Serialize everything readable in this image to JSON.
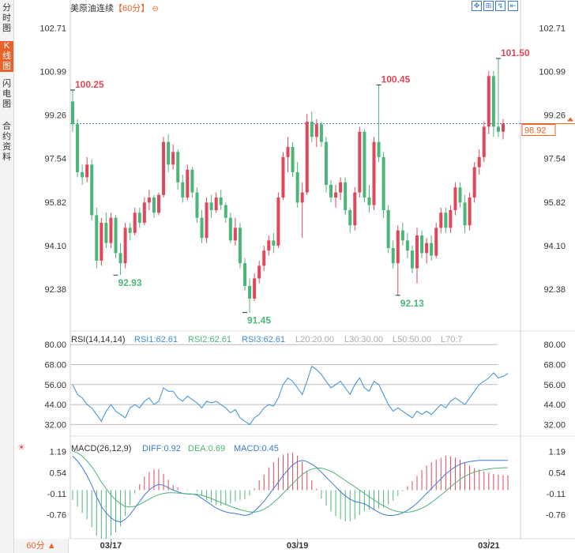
{
  "sidebar": {
    "tabs": [
      {
        "label": "分时图",
        "active": false
      },
      {
        "label": "K线图",
        "active": true
      },
      {
        "label": "闪电图",
        "active": false
      },
      {
        "label": "合约资料",
        "active": false
      }
    ]
  },
  "header": {
    "title": "美原油连续",
    "period": "【60分】",
    "period_icon": "minus-circle-icon",
    "toolbar": [
      "expand-icon",
      "crosshair-icon",
      "indicator-icon",
      "exit-icon"
    ]
  },
  "footer": {
    "period_select": "60分 ▲"
  },
  "current_price": "98.92",
  "colors": {
    "up": "#e0475a",
    "down": "#4cb578",
    "axis": "#333333",
    "grid": "#e6e6e6",
    "dash": "#3a7bd5",
    "rsi": "#3a8fd5",
    "diff": "#3a7bd5",
    "dea": "#4cb578",
    "orange": "#e8622a"
  },
  "chart_data": [
    {
      "type": "candlestick",
      "title": "美原油连续 60分",
      "yticks": [
        "102.71",
        "100.99",
        "99.26",
        "97.54",
        "95.82",
        "94.10",
        "92.38"
      ],
      "ylim": [
        90.75,
        103.25
      ],
      "xticks": [
        {
          "label": "03/17",
          "index": 8
        },
        {
          "label": "03/19",
          "index": 47
        },
        {
          "label": "03/21",
          "index": 87
        }
      ],
      "annotations": [
        {
          "text": "100.25",
          "index": 0,
          "value": 100.25,
          "kind": "high"
        },
        {
          "text": "92.93",
          "index": 9,
          "value": 92.93,
          "kind": "low"
        },
        {
          "text": "91.45",
          "index": 36,
          "value": 91.45,
          "kind": "low"
        },
        {
          "text": "100.45",
          "index": 64,
          "value": 100.45,
          "kind": "high"
        },
        {
          "text": "92.13",
          "index": 68,
          "value": 92.13,
          "kind": "low"
        },
        {
          "text": "101.50",
          "index": 89,
          "value": 101.5,
          "kind": "high"
        }
      ],
      "reference_line": 98.92,
      "ohlc": [
        [
          99.8,
          100.25,
          98.6,
          98.9
        ],
        [
          98.9,
          99.1,
          96.8,
          97.0
        ],
        [
          97.0,
          97.3,
          96.5,
          96.8
        ],
        [
          96.8,
          97.6,
          96.6,
          97.3
        ],
        [
          97.3,
          97.5,
          95.1,
          95.3
        ],
        [
          95.3,
          95.6,
          93.2,
          93.5
        ],
        [
          93.5,
          95.2,
          93.3,
          95.0
        ],
        [
          95.0,
          95.4,
          94.0,
          94.2
        ],
        [
          94.2,
          95.4,
          94.0,
          95.2
        ],
        [
          95.2,
          95.3,
          93.6,
          93.8
        ],
        [
          93.8,
          94.2,
          92.93,
          93.4
        ],
        [
          93.4,
          95.0,
          93.2,
          94.8
        ],
        [
          94.8,
          95.0,
          94.3,
          94.6
        ],
        [
          94.6,
          95.6,
          94.5,
          95.4
        ],
        [
          95.4,
          95.6,
          94.8,
          95.0
        ],
        [
          95.0,
          96.0,
          94.9,
          95.8
        ],
        [
          95.8,
          96.3,
          95.5,
          96.0
        ],
        [
          96.0,
          96.1,
          95.2,
          95.4
        ],
        [
          95.4,
          96.2,
          95.3,
          96.1
        ],
        [
          96.1,
          98.4,
          96.0,
          98.2
        ],
        [
          98.2,
          98.5,
          97.0,
          97.3
        ],
        [
          97.3,
          98.1,
          97.1,
          97.8
        ],
        [
          97.8,
          97.9,
          96.3,
          96.6
        ],
        [
          96.6,
          96.9,
          95.8,
          96.0
        ],
        [
          96.0,
          97.3,
          95.9,
          97.1
        ],
        [
          97.1,
          97.2,
          96.0,
          96.2
        ],
        [
          96.2,
          96.4,
          95.0,
          95.2
        ],
        [
          95.2,
          95.5,
          94.2,
          94.4
        ],
        [
          94.4,
          96.0,
          94.2,
          95.8
        ],
        [
          95.8,
          96.1,
          95.2,
          95.5
        ],
        [
          95.5,
          96.2,
          95.4,
          96.0
        ],
        [
          96.0,
          96.3,
          95.5,
          95.7
        ],
        [
          95.7,
          95.8,
          95.0,
          95.2
        ],
        [
          95.2,
          95.4,
          94.2,
          94.3
        ],
        [
          94.3,
          95.2,
          94.1,
          94.8
        ],
        [
          94.8,
          95.0,
          93.2,
          93.4
        ],
        [
          93.4,
          93.6,
          92.3,
          92.5
        ],
        [
          92.5,
          92.8,
          91.45,
          92.0
        ],
        [
          92.0,
          93.0,
          91.9,
          92.8
        ],
        [
          92.8,
          93.5,
          92.6,
          93.3
        ],
        [
          93.3,
          94.1,
          93.1,
          93.9
        ],
        [
          93.9,
          94.5,
          93.7,
          94.3
        ],
        [
          94.3,
          94.6,
          93.8,
          94.1
        ],
        [
          94.1,
          96.2,
          94.0,
          96.0
        ],
        [
          96.0,
          97.8,
          95.9,
          97.6
        ],
        [
          97.6,
          98.4,
          97.0,
          98.0
        ],
        [
          98.0,
          98.2,
          96.8,
          97.0
        ],
        [
          97.0,
          97.4,
          95.6,
          95.8
        ],
        [
          95.8,
          96.6,
          94.4,
          96.2
        ],
        [
          96.2,
          99.3,
          96.1,
          99.0
        ],
        [
          99.0,
          99.4,
          98.2,
          98.4
        ],
        [
          98.4,
          99.1,
          98.0,
          98.9
        ],
        [
          98.9,
          99.0,
          98.0,
          98.2
        ],
        [
          98.2,
          98.4,
          96.2,
          96.5
        ],
        [
          96.5,
          96.7,
          95.8,
          96.0
        ],
        [
          96.0,
          96.5,
          95.6,
          96.2
        ],
        [
          96.2,
          96.8,
          95.9,
          96.6
        ],
        [
          96.6,
          96.8,
          95.3,
          95.5
        ],
        [
          95.5,
          95.6,
          94.6,
          94.9
        ],
        [
          94.9,
          96.4,
          94.7,
          96.2
        ],
        [
          96.2,
          98.8,
          96.0,
          98.6
        ],
        [
          98.6,
          98.7,
          95.8,
          96.0
        ],
        [
          96.0,
          96.5,
          95.4,
          95.7
        ],
        [
          95.7,
          98.4,
          95.5,
          98.2
        ],
        [
          98.2,
          100.45,
          97.4,
          97.6
        ],
        [
          97.6,
          97.8,
          95.2,
          95.5
        ],
        [
          95.5,
          95.7,
          93.8,
          94.0
        ],
        [
          94.0,
          94.3,
          93.2,
          93.4
        ],
        [
          93.4,
          94.9,
          92.13,
          94.7
        ],
        [
          94.7,
          95.0,
          94.1,
          94.3
        ],
        [
          94.3,
          94.6,
          93.6,
          93.9
        ],
        [
          93.9,
          94.1,
          93.0,
          93.2
        ],
        [
          93.2,
          94.8,
          92.6,
          94.5
        ],
        [
          94.5,
          94.7,
          93.6,
          93.8
        ],
        [
          93.8,
          94.4,
          93.4,
          94.2
        ],
        [
          94.2,
          94.5,
          93.5,
          93.7
        ],
        [
          93.7,
          95.0,
          93.6,
          94.8
        ],
        [
          94.8,
          95.6,
          94.6,
          95.4
        ],
        [
          95.4,
          95.6,
          94.6,
          94.8
        ],
        [
          94.8,
          95.7,
          94.6,
          95.5
        ],
        [
          95.5,
          96.6,
          95.3,
          96.4
        ],
        [
          96.4,
          96.6,
          95.6,
          95.8
        ],
        [
          95.8,
          96.1,
          94.6,
          94.9
        ],
        [
          94.9,
          96.2,
          94.7,
          96.0
        ],
        [
          96.0,
          97.4,
          95.8,
          97.2
        ],
        [
          97.2,
          97.9,
          96.9,
          97.6
        ],
        [
          97.6,
          99.0,
          97.4,
          98.8
        ],
        [
          98.8,
          101.0,
          98.5,
          100.8
        ],
        [
          100.8,
          101.0,
          98.4,
          98.8
        ],
        [
          98.8,
          101.5,
          98.4,
          98.6
        ],
        [
          98.6,
          99.1,
          98.3,
          98.92
        ]
      ]
    },
    {
      "type": "line",
      "title": "RSI(14,14,14)",
      "legend": [
        "RSI1:62.61",
        "RSI2:62.61",
        "RSI3:62.61",
        "L20:20.00",
        "L30:30.00",
        "L50:50.00",
        "L70:7"
      ],
      "yticks": [
        "80.00",
        "68.00",
        "56.00",
        "44.00",
        "32.00"
      ],
      "ylim": [
        26,
        82
      ],
      "levels": [
        80,
        68,
        56,
        44,
        32
      ],
      "values": [
        56,
        50,
        48,
        44,
        42,
        38,
        34,
        40,
        44,
        40,
        38,
        36,
        42,
        44,
        42,
        46,
        48,
        44,
        46,
        54,
        52,
        52,
        48,
        46,
        49,
        47,
        45,
        42,
        46,
        45,
        46,
        44,
        42,
        39,
        41,
        36,
        34,
        32,
        36,
        38,
        42,
        44,
        43,
        48,
        56,
        60,
        58,
        54,
        50,
        58,
        67,
        65,
        62,
        58,
        54,
        56,
        58,
        54,
        50,
        56,
        60,
        54,
        52,
        58,
        56,
        50,
        44,
        40,
        42,
        40,
        38,
        36,
        40,
        38,
        40,
        38,
        41,
        44,
        42,
        46,
        48,
        46,
        44,
        48,
        52,
        56,
        58,
        60,
        63,
        60,
        61,
        62.61
      ]
    },
    {
      "type": "macd",
      "title": "MACD(26,12,9)",
      "legend": [
        "DIFF:0.92",
        "DEA:0.69",
        "MACD:0.45"
      ],
      "yticks": [
        "1.19",
        "0.54",
        "-0.11",
        "-0.76"
      ],
      "ylim": [
        -1.45,
        1.35
      ],
      "diff": [
        1.05,
        0.9,
        0.7,
        0.45,
        0.15,
        -0.2,
        -0.5,
        -0.7,
        -0.85,
        -0.95,
        -0.98,
        -0.9,
        -0.75,
        -0.55,
        -0.35,
        -0.15,
        0.0,
        0.12,
        0.18,
        0.15,
        0.08,
        0.0,
        -0.05,
        -0.1,
        -0.12,
        -0.12,
        -0.15,
        -0.25,
        -0.35,
        -0.45,
        -0.55,
        -0.62,
        -0.67,
        -0.7,
        -0.72,
        -0.75,
        -0.78,
        -0.75,
        -0.65,
        -0.5,
        -0.35,
        -0.15,
        0.05,
        0.25,
        0.45,
        0.62,
        0.78,
        0.88,
        0.92,
        0.88,
        0.8,
        0.7,
        0.55,
        0.4,
        0.25,
        0.1,
        -0.05,
        -0.18,
        -0.28,
        -0.35,
        -0.38,
        -0.42,
        -0.5,
        -0.6,
        -0.68,
        -0.75,
        -0.78,
        -0.78,
        -0.75,
        -0.7,
        -0.62,
        -0.52,
        -0.4,
        -0.25,
        -0.1,
        0.05,
        0.2,
        0.35,
        0.5,
        0.62,
        0.72,
        0.8,
        0.85,
        0.88,
        0.9,
        0.92,
        0.92,
        0.92,
        0.92,
        0.92,
        0.92,
        0.92
      ],
      "dea": [
        1.2,
        1.15,
        1.05,
        0.9,
        0.72,
        0.5,
        0.25,
        0.05,
        -0.15,
        -0.3,
        -0.42,
        -0.5,
        -0.52,
        -0.5,
        -0.44,
        -0.36,
        -0.28,
        -0.2,
        -0.14,
        -0.1,
        -0.08,
        -0.08,
        -0.09,
        -0.1,
        -0.11,
        -0.12,
        -0.13,
        -0.16,
        -0.2,
        -0.26,
        -0.32,
        -0.38,
        -0.44,
        -0.5,
        -0.55,
        -0.6,
        -0.64,
        -0.67,
        -0.68,
        -0.65,
        -0.59,
        -0.5,
        -0.38,
        -0.25,
        -0.1,
        0.05,
        0.2,
        0.35,
        0.48,
        0.58,
        0.65,
        0.68,
        0.68,
        0.64,
        0.58,
        0.5,
        0.4,
        0.3,
        0.2,
        0.1,
        0.0,
        -0.1,
        -0.2,
        -0.3,
        -0.4,
        -0.48,
        -0.56,
        -0.62,
        -0.66,
        -0.68,
        -0.68,
        -0.66,
        -0.62,
        -0.56,
        -0.48,
        -0.38,
        -0.27,
        -0.15,
        -0.03,
        0.1,
        0.22,
        0.33,
        0.43,
        0.5,
        0.56,
        0.6,
        0.63,
        0.65,
        0.67,
        0.68,
        0.69,
        0.69
      ]
    }
  ]
}
